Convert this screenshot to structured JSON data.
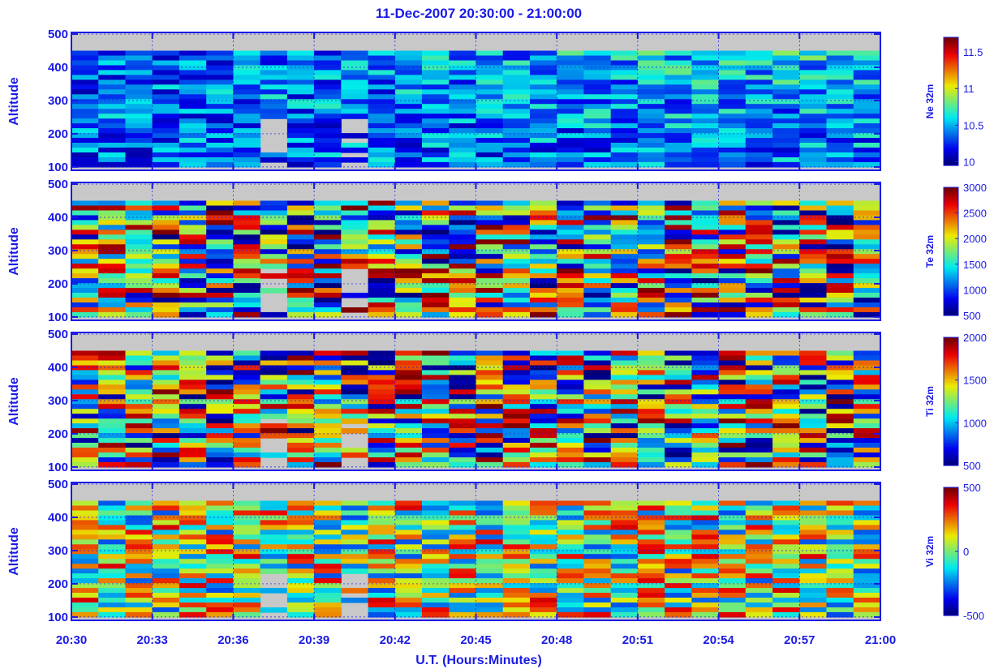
{
  "chart_data": {
    "type": "heatmap",
    "title": "11-Dec-2007 20:30:00 - 21:00:00",
    "xlabel": "U.T. (Hours:Minutes)",
    "x_tick_labels": [
      "20:30",
      "20:33",
      "20:36",
      "20:39",
      "20:42",
      "20:45",
      "20:48",
      "20:51",
      "20:54",
      "20:57",
      "21:00"
    ],
    "x_range": [
      "20:30",
      "21:00"
    ],
    "grid": true,
    "missing_color": "#c8c8c8",
    "colormap": "jet",
    "panels": [
      {
        "ylabel": "Altitude",
        "y_ticks": [
          100,
          200,
          300,
          400,
          500
        ],
        "ylim": [
          90,
          505
        ],
        "colorbar_label": "Ne 32m",
        "colorbar_ticks": [
          "10",
          "10.5",
          "11",
          "11.5"
        ],
        "clim": [
          9.95,
          11.7
        ]
      },
      {
        "ylabel": "Altitude",
        "y_ticks": [
          100,
          200,
          300,
          400,
          500
        ],
        "ylim": [
          90,
          505
        ],
        "colorbar_label": "Te 32m",
        "colorbar_ticks": [
          "500",
          "1000",
          "1500",
          "2000",
          "2500",
          "3000"
        ],
        "clim": [
          500,
          3000
        ]
      },
      {
        "ylabel": "Altitude",
        "y_ticks": [
          100,
          200,
          300,
          400,
          500
        ],
        "ylim": [
          90,
          505
        ],
        "colorbar_label": "Ti 32m",
        "colorbar_ticks": [
          "500",
          "1000",
          "1500",
          "2000"
        ],
        "clim": [
          500,
          2000
        ]
      },
      {
        "ylabel": "Altitude",
        "y_ticks": [
          100,
          200,
          300,
          400,
          500
        ],
        "ylim": [
          90,
          505
        ],
        "colorbar_label": "Vi 32m",
        "colorbar_ticks": [
          "-500",
          "0",
          "500"
        ],
        "clim": [
          -500,
          500
        ]
      }
    ]
  }
}
